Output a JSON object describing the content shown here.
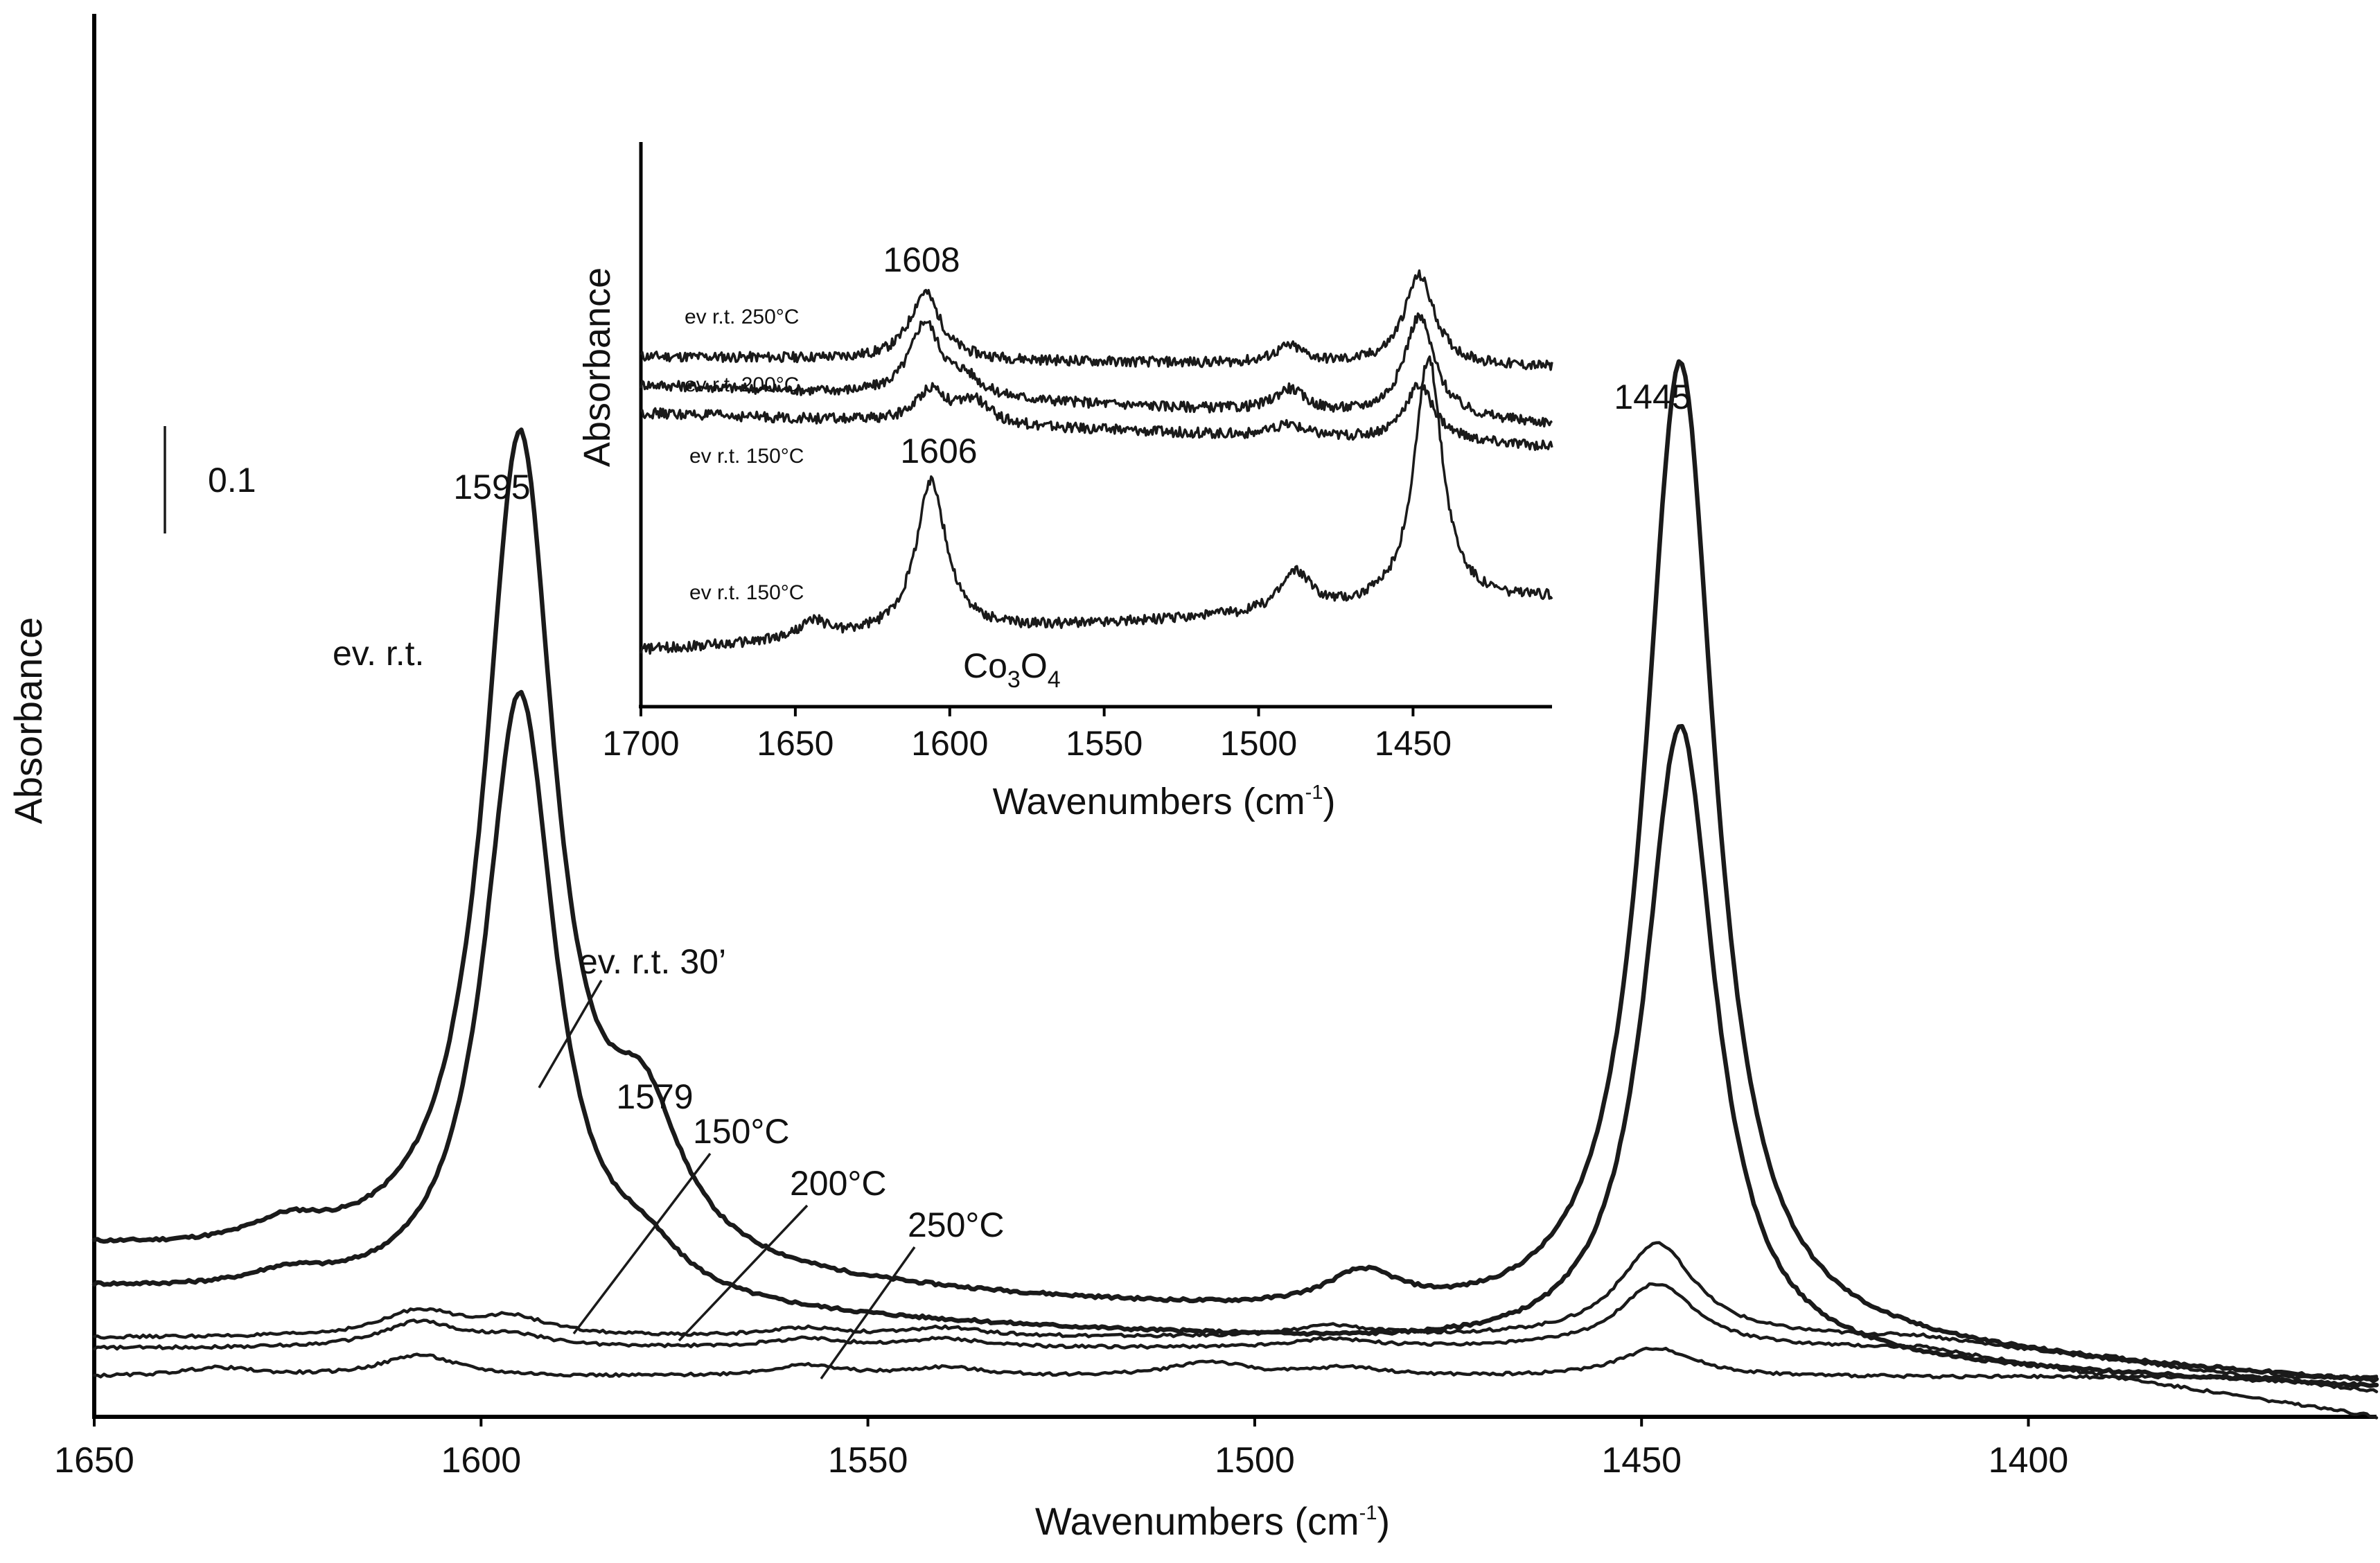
{
  "chart_data": [
    {
      "type": "line",
      "title": "",
      "xlabel": "Wavenumbers (cm",
      "xlabel_sup": "-1",
      "xlabel_close": ")",
      "ylabel": "Absorbance",
      "xlim": [
        1650,
        1355
      ],
      "ylim": [
        0,
        1.95
      ],
      "xticks": [
        1650,
        1600,
        1550,
        1500,
        1450,
        1400
      ],
      "scale_bar": {
        "label": "0.1",
        "value": 0.1
      },
      "series": [
        {
          "name": "ev. r.t.",
          "peaks": [
            [
              1625,
              0.03
            ],
            [
              1595,
              1.15
            ],
            [
              1579,
              0.18
            ],
            [
              1486,
              0.05
            ],
            [
              1445,
              1.36
            ]
          ],
          "baseline": [
            0.23,
            0.085,
            0.045
          ]
        },
        {
          "name": "ev. r.t. 30'",
          "peaks": [
            [
              1625,
              0.02
            ],
            [
              1595,
              0.85
            ],
            [
              1579,
              0.05
            ],
            [
              1445,
              0.88
            ]
          ],
          "baseline": [
            0.175,
            0.065,
            0.04
          ]
        },
        {
          "name": "150°C",
          "peaks": [
            [
              1608,
              0.035
            ],
            [
              1596,
              0.025
            ],
            [
              1558,
              0.012
            ],
            [
              1540,
              0.012
            ],
            [
              1490,
              0.015
            ],
            [
              1448,
              0.13
            ]
          ],
          "baseline": [
            0.11,
            0.11,
            0.035
          ]
        },
        {
          "name": "200°C",
          "peaks": [
            [
              1608,
              0.035
            ],
            [
              1596,
              0.015
            ],
            [
              1558,
              0.012
            ],
            [
              1540,
              0.012
            ],
            [
              1490,
              0.012
            ],
            [
              1448,
              0.09
            ]
          ],
          "baseline": [
            0.095,
            0.095,
            0.0
          ]
        },
        {
          "name": "250°C",
          "peaks": [
            [
              1634,
              0.012
            ],
            [
              1608,
              0.03
            ],
            [
              1558,
              0.015
            ],
            [
              1540,
              0.012
            ],
            [
              1506,
              0.02
            ],
            [
              1488,
              0.012
            ],
            [
              1448,
              0.04
            ]
          ],
          "baseline": [
            0.055,
            0.055,
            0.055
          ]
        }
      ],
      "annotations": [
        "1595",
        "1579",
        "1445",
        "ev. r.t.",
        "ev. r.t. 30’",
        "150°C",
        "200°C",
        "250°C"
      ]
    },
    {
      "type": "line",
      "title": "",
      "xlabel": "Wavenumbers  (cm",
      "xlabel_sup": "-1",
      "xlabel_close": ")",
      "ylabel": "Absorbance",
      "xlim": [
        1700,
        1405
      ],
      "ylim": [
        0,
        1
      ],
      "xticks": [
        1700,
        1650,
        1600,
        1550,
        1500,
        1450
      ],
      "series": [
        {
          "name": "ev r.t. 250°C",
          "peaks": [
            [
              1608,
              0.12
            ],
            [
              1490,
              0.03
            ],
            [
              1448,
              0.16
            ]
          ],
          "baseline": [
            0.62,
            0.6
          ]
        },
        {
          "name": "ev r.t. 200°C",
          "peaks": [
            [
              1608,
              0.13
            ],
            [
              1595,
              0.03
            ],
            [
              1490,
              0.04
            ],
            [
              1448,
              0.18
            ]
          ],
          "baseline": [
            0.57,
            0.5
          ]
        },
        {
          "name": "ev r.t. 150°C",
          "peaks": [
            [
              1606,
              0.06
            ],
            [
              1592,
              0.04
            ],
            [
              1490,
              0.02
            ],
            [
              1448,
              0.1
            ]
          ],
          "baseline": [
            0.52,
            0.46
          ]
        },
        {
          "name": "ev r.t. 150°C",
          "peaks": [
            [
              1644,
              0.03
            ],
            [
              1606,
              0.27
            ],
            [
              1488,
              0.07
            ],
            [
              1445,
              0.44
            ]
          ],
          "baseline": [
            0.1,
            0.19
          ]
        }
      ],
      "annotations": [
        "1608",
        "1606",
        "Co₃O₄"
      ]
    }
  ],
  "main": {
    "peak_labels": {
      "p1595": "1595",
      "p1579": "1579",
      "p1445": "1445"
    },
    "curve_labels": {
      "ev_rt": "ev. r.t.",
      "ev_rt_30": "ev. r.t. 30’",
      "t150": "150°C",
      "t200": "200°C",
      "t250": "250°C"
    },
    "scale_label": "0.1"
  },
  "inset": {
    "peak_labels": {
      "p1608": "1608",
      "p1606": "1606"
    },
    "curve_labels": {
      "c250": "ev r.t. 250°C",
      "c200": "ev r.t. 200°C",
      "c150a": "ev r.t. 150°C",
      "c150b": "ev r.t. 150°C"
    },
    "sample": {
      "co": "Co",
      "sub3": "3",
      "o": "O",
      "sub4": "4"
    }
  }
}
